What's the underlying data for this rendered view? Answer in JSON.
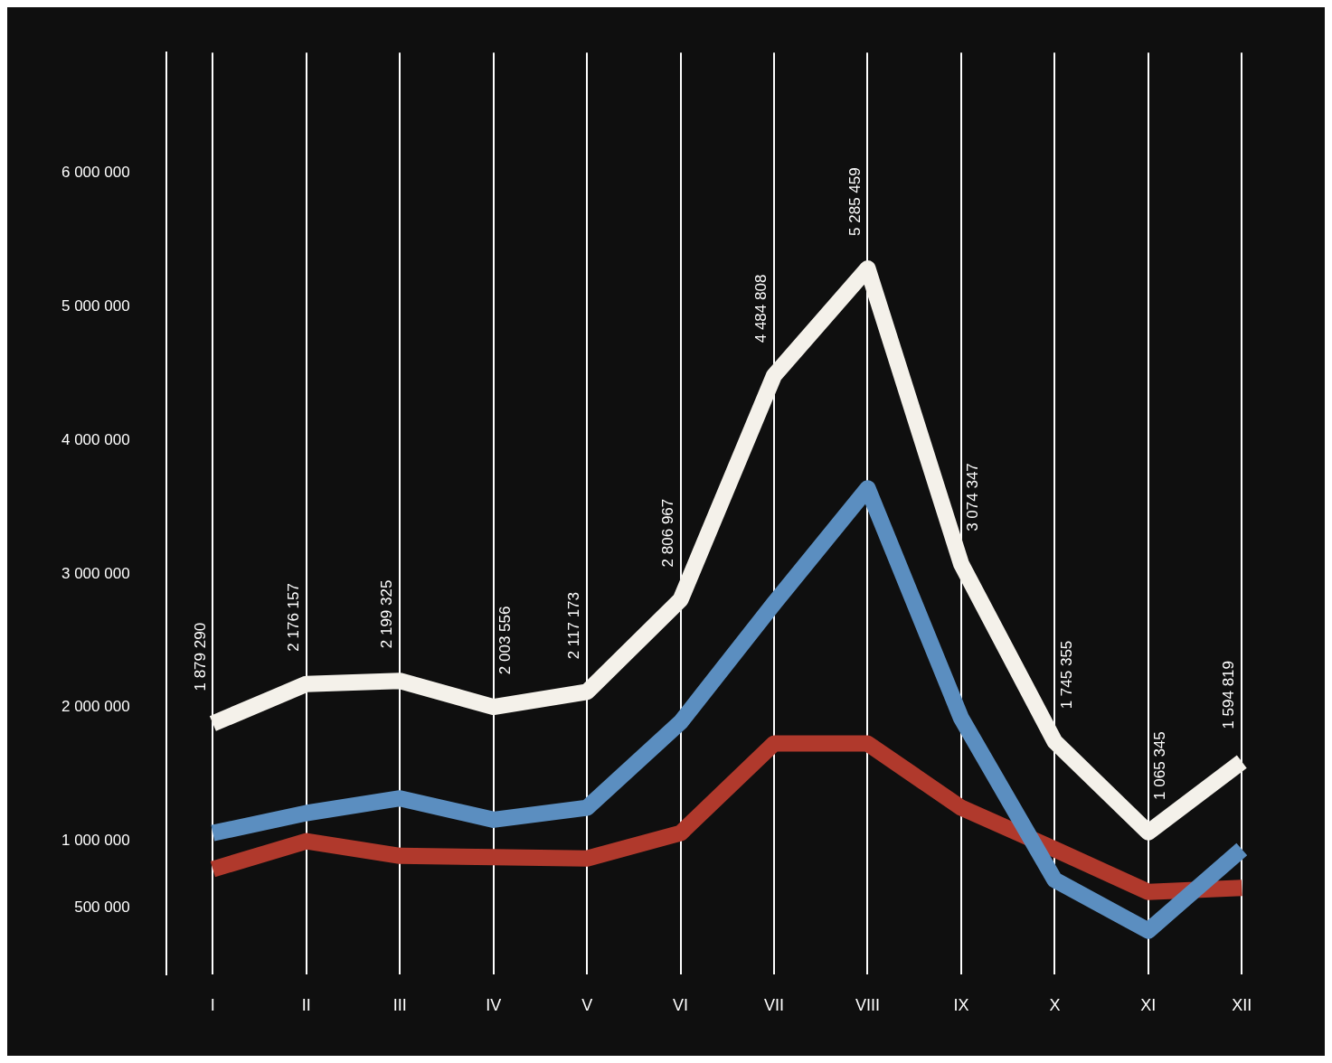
{
  "chart_data": {
    "type": "line",
    "categories": [
      "I",
      "II",
      "III",
      "IV",
      "V",
      "VI",
      "VII",
      "VIII",
      "IX",
      "X",
      "XI",
      "XII"
    ],
    "series": [
      {
        "color": "#5b8ec0",
        "values": [
          1060000,
          1210000,
          1320000,
          1160000,
          1250000,
          1890000,
          2780000,
          3640000,
          1920000,
          710000,
          330000,
          940000
        ]
      },
      {
        "color": "#b0392c",
        "values": [
          790000,
          1000000,
          890000,
          880000,
          870000,
          1060000,
          1730000,
          1730000,
          1250000,
          940000,
          620000,
          650000
        ]
      },
      {
        "color": "#f4f1ea",
        "values": [
          1879290,
          2176157,
          2199325,
          2003556,
          2117173,
          2806967,
          4484808,
          5285459,
          3074347,
          1745355,
          1065345,
          1594819
        ],
        "value_labels": [
          "1 879 290",
          "2 176 157",
          "2 199 325",
          "2 003 556",
          "2 117 173",
          "2 806 967",
          "4 484 808",
          "5 285 459",
          "3 074 347",
          "1 745 355",
          "1 065 345",
          "1 594 819"
        ]
      }
    ],
    "ylim": [
      0,
      6900000
    ],
    "yticks": [
      {
        "value": 500000,
        "label": "500 000"
      },
      {
        "value": 1000000,
        "label": "1 000 000"
      },
      {
        "value": 2000000,
        "label": "2 000 000"
      },
      {
        "value": 3000000,
        "label": "3 000 000"
      },
      {
        "value": 4000000,
        "label": "4 000 000"
      },
      {
        "value": 5000000,
        "label": "5 000 000"
      },
      {
        "value": 6000000,
        "label": "6 000 000"
      }
    ],
    "grid": "x",
    "legend": false,
    "marker": "none",
    "line_style": "solid"
  }
}
